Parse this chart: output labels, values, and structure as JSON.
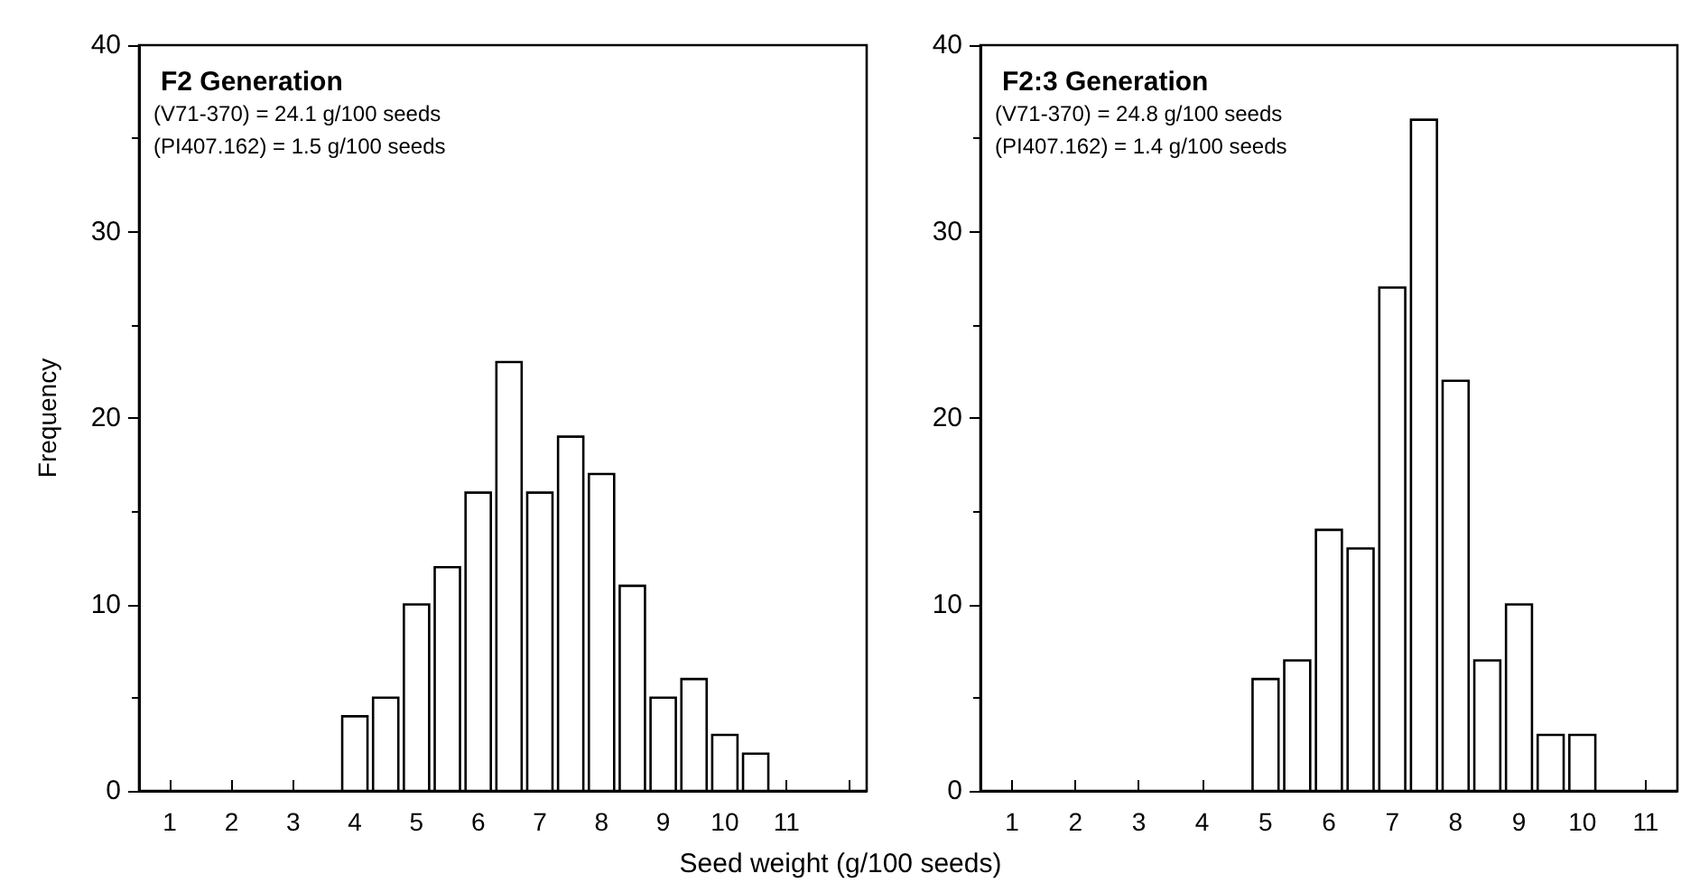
{
  "chart_data": [
    {
      "type": "histogram",
      "title": "F2 Generation",
      "annotations": [
        "(V71-370) = 24.1 g/100 seeds",
        "(PI407.162) = 1.5 g/100 seeds"
      ],
      "ylabel": "Frequency",
      "xlabel": "Seed weight (g/100 seeds)",
      "bins": [
        3.75,
        4.25,
        4.75,
        5.25,
        5.75,
        6.25,
        6.75,
        7.25,
        7.75,
        8.25,
        8.75,
        9.25,
        9.75,
        10.25,
        10.75
      ],
      "values": [
        4,
        5,
        10,
        12,
        16,
        23,
        16,
        19,
        17,
        11,
        5,
        6,
        3,
        2
      ],
      "color": "#ffffff",
      "xlim": [
        0.5,
        12.3
      ],
      "xticks": [
        1,
        2,
        3,
        4,
        5,
        6,
        7,
        8,
        9,
        10,
        11,
        {
          "value": 12,
          "label": null
        }
      ],
      "ylim": [
        0,
        40
      ],
      "yticks": [
        0,
        10,
        20,
        30,
        40
      ],
      "grid": false
    },
    {
      "type": "histogram",
      "title": "F2:3 Generation",
      "annotations": [
        "(V71-370) = 24.8 g/100 seeds",
        "(PI407.162) = 1.4 g/100 seeds"
      ],
      "bins": [
        4.75,
        5.25,
        5.75,
        6.25,
        6.75,
        7.25,
        7.75,
        8.25,
        8.75,
        9.25,
        9.75,
        10.25
      ],
      "values": [
        6,
        7,
        14,
        13,
        27,
        36,
        22,
        7,
        10,
        3,
        3
      ],
      "color": "#ffffff",
      "xlim": [
        0.5,
        11.5
      ],
      "xticks": [
        1,
        2,
        3,
        4,
        5,
        6,
        7,
        8,
        9,
        10,
        11
      ],
      "ylim": [
        0,
        40
      ],
      "yticks": [
        0,
        10,
        20,
        30,
        40
      ],
      "grid": false
    }
  ]
}
